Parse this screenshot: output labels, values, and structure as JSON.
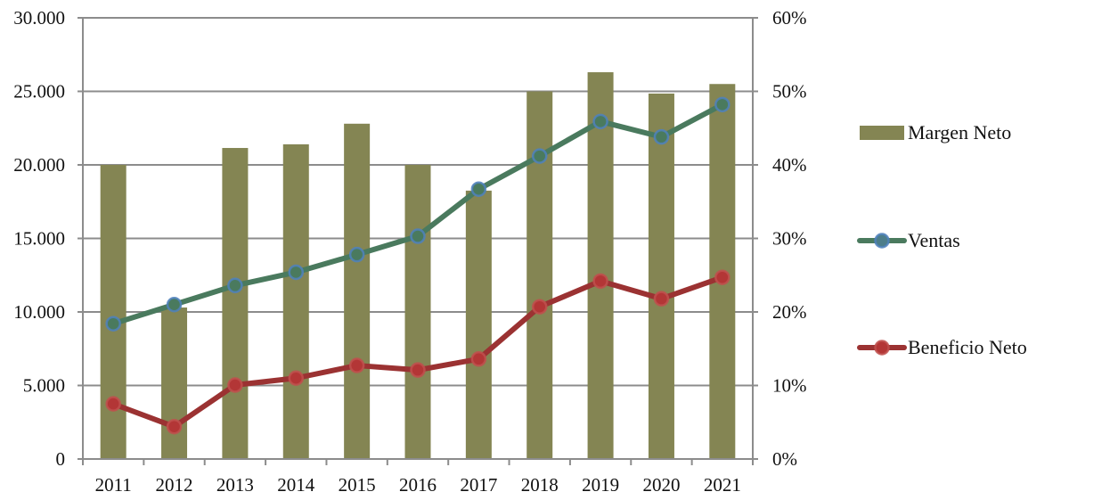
{
  "chart_data": {
    "type": "bar",
    "title": "",
    "xlabel": "",
    "ylabel": "",
    "y2label": "",
    "categories": [
      "2011",
      "2012",
      "2013",
      "2014",
      "2015",
      "2016",
      "2017",
      "2018",
      "2019",
      "2020",
      "2021"
    ],
    "ylim": [
      0,
      30000
    ],
    "y_ticks": [
      0,
      5000,
      10000,
      15000,
      20000,
      25000,
      30000
    ],
    "y_tick_labels": [
      "0",
      "5.000",
      "10.000",
      "15.000",
      "20.000",
      "25.000",
      "30.000"
    ],
    "y2lim": [
      0,
      60
    ],
    "y2_ticks": [
      0,
      10,
      20,
      30,
      40,
      50,
      60
    ],
    "y2_tick_labels": [
      "0%",
      "10%",
      "20%",
      "30%",
      "40%",
      "50%",
      "60%"
    ],
    "grid": true,
    "legend_position": "right",
    "series": [
      {
        "name": "Margen Neto",
        "type": "bar",
        "axis": "right",
        "unit": "%",
        "color": "#848553",
        "values": [
          40,
          20.6,
          42.3,
          42.8,
          45.6,
          40,
          36.5,
          50,
          52.6,
          49.7,
          51
        ]
      },
      {
        "name": "Ventas",
        "type": "line",
        "axis": "left",
        "color": "#4A7A5E",
        "marker_edge": "#4F81BD",
        "values": [
          9200,
          10500,
          11800,
          12700,
          13900,
          15150,
          18350,
          20600,
          22950,
          21900,
          24100
        ]
      },
      {
        "name": "Beneficio Neto",
        "type": "line",
        "axis": "left",
        "color": "#9B3232",
        "marker_edge": "#C0504D",
        "values": [
          3750,
          2200,
          5030,
          5500,
          6360,
          6050,
          6800,
          10350,
          12100,
          10900,
          12350
        ]
      }
    ]
  }
}
